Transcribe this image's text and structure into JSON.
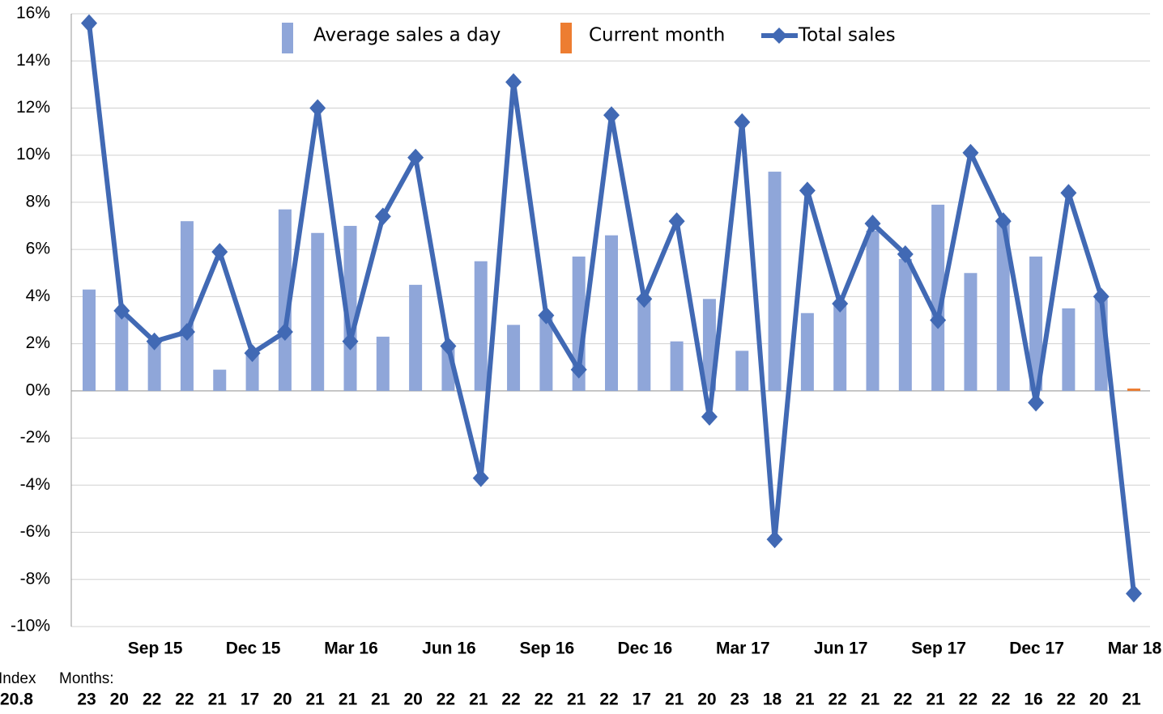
{
  "chart_data": {
    "type": "bar-line",
    "categories": [
      null,
      null,
      "Sep 15",
      null,
      null,
      "Dec 15",
      null,
      null,
      "Mar 16",
      null,
      null,
      "Jun 16",
      null,
      null,
      "Sep 16",
      null,
      null,
      "Dec 16",
      null,
      null,
      "Mar 17",
      null,
      null,
      "Jun 17",
      null,
      null,
      "Sep 17",
      null,
      null,
      "Dec 17",
      null,
      null,
      "Mar 18"
    ],
    "series": [
      {
        "name": "Average sales a day",
        "kind": "bar",
        "color": "#8fa6d9",
        "values": [
          4.3,
          3.3,
          2.1,
          7.2,
          0.9,
          1.7,
          7.7,
          6.7,
          7.0,
          2.3,
          4.5,
          2.0,
          5.5,
          2.8,
          3.3,
          5.7,
          6.6,
          4.0,
          2.1,
          3.9,
          1.7,
          9.3,
          3.3,
          3.7,
          6.8,
          5.6,
          7.9,
          5.0,
          7.3,
          5.7,
          3.5,
          3.9,
          null
        ]
      },
      {
        "name": "Current month",
        "kind": "bar",
        "color": "#ed7d31",
        "values": [
          null,
          null,
          null,
          null,
          null,
          null,
          null,
          null,
          null,
          null,
          null,
          null,
          null,
          null,
          null,
          null,
          null,
          null,
          null,
          null,
          null,
          null,
          null,
          null,
          null,
          null,
          null,
          null,
          null,
          null,
          null,
          null,
          0.1
        ]
      },
      {
        "name": "Total sales",
        "kind": "line",
        "color": "#4169b4",
        "values": [
          15.6,
          3.4,
          2.1,
          2.5,
          5.9,
          1.6,
          2.5,
          12.0,
          2.1,
          7.4,
          9.9,
          1.9,
          -3.7,
          13.1,
          3.2,
          0.9,
          11.7,
          3.9,
          7.2,
          -1.1,
          11.4,
          -6.3,
          8.5,
          3.7,
          7.1,
          5.8,
          3.0,
          10.1,
          7.2,
          -0.5,
          8.4,
          4.0,
          -8.6
        ]
      }
    ],
    "ylim": [
      -10,
      16
    ],
    "yticks": [
      {
        "value": -10,
        "label": "-10%"
      },
      {
        "value": -8,
        "label": "-8%"
      },
      {
        "value": -6,
        "label": "-6%"
      },
      {
        "value": -4,
        "label": "-4%"
      },
      {
        "value": -2,
        "label": "-2%"
      },
      {
        "value": 0,
        "label": "0%"
      },
      {
        "value": 2,
        "label": "2%"
      },
      {
        "value": 4,
        "label": "4%"
      },
      {
        "value": 6,
        "label": "6%"
      },
      {
        "value": 8,
        "label": "8%"
      },
      {
        "value": 10,
        "label": "10%"
      },
      {
        "value": 12,
        "label": "12%"
      },
      {
        "value": 14,
        "label": "14%"
      },
      {
        "value": 16,
        "label": "16%"
      }
    ],
    "grid": true,
    "index_label": "Index",
    "index_value": 20.8,
    "months_label": "Months:",
    "months_days": [
      23,
      20,
      22,
      22,
      21,
      17,
      20,
      21,
      21,
      21,
      20,
      22,
      21,
      22,
      22,
      21,
      22,
      17,
      21,
      20,
      23,
      18,
      21,
      22,
      21,
      22,
      21,
      22,
      22,
      16,
      22,
      20,
      21
    ]
  }
}
